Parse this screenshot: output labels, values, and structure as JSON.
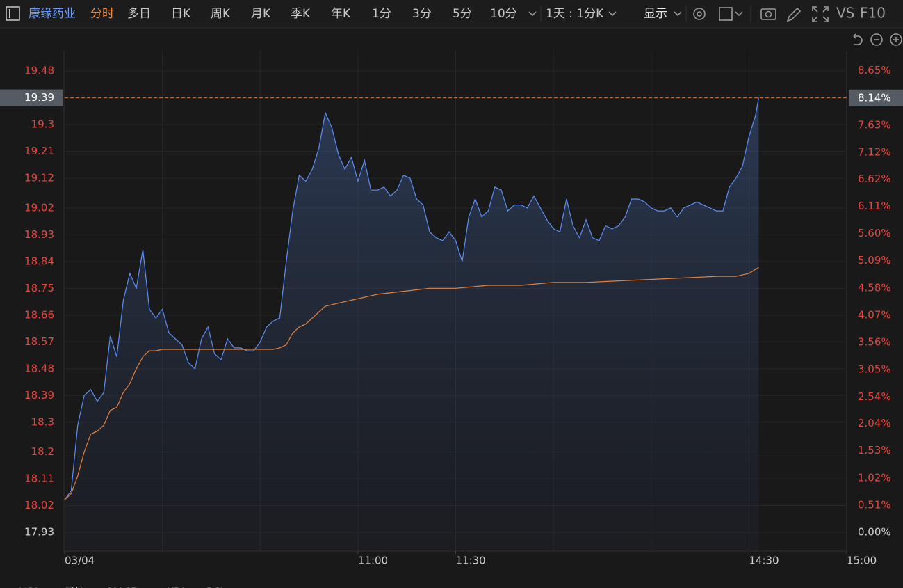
{
  "toolbar": {
    "stock_name": "康缘药业",
    "tabs": [
      "分时",
      "多日",
      "日K",
      "周K",
      "月K",
      "季K",
      "年K",
      "1分",
      "3分",
      "5分",
      "10分"
    ],
    "period": "1天 : 1分K",
    "display": "显示",
    "vs": "VS",
    "f10": "F10"
  },
  "chart_data": {
    "type": "line",
    "xlim": [
      0,
      240
    ],
    "xticks": [
      {
        "value": 0,
        "label": "03/04"
      },
      {
        "value": 90,
        "label": "11:00"
      },
      {
        "value": 120,
        "label": "11:30"
      },
      {
        "value": 210,
        "label": "14:30"
      },
      {
        "value": 240,
        "label": "15:00"
      }
    ],
    "xgrid": [
      30,
      60,
      90,
      120,
      150,
      180,
      210
    ],
    "ylim": [
      17.867,
      19.548
    ],
    "yticks": [
      19.48,
      19.39,
      19.3,
      19.21,
      19.12,
      19.02,
      18.93,
      18.84,
      18.75,
      18.66,
      18.57,
      18.48,
      18.39,
      18.3,
      18.2,
      18.11,
      18.02,
      17.93
    ],
    "y2lim": [
      -0.351,
      9.024
    ],
    "y2ticks": [
      {
        "value": 8.65,
        "label": "8.65%"
      },
      {
        "value": 8.14,
        "label": "8.14%"
      },
      {
        "value": 7.63,
        "label": "7.63%"
      },
      {
        "value": 7.12,
        "label": "7.12%"
      },
      {
        "value": 6.62,
        "label": "6.62%"
      },
      {
        "value": 6.11,
        "label": "6.11%"
      },
      {
        "value": 5.6,
        "label": "5.60%"
      },
      {
        "value": 5.09,
        "label": "5.09%"
      },
      {
        "value": 4.58,
        "label": "4.58%"
      },
      {
        "value": 4.07,
        "label": "4.07%"
      },
      {
        "value": 3.56,
        "label": "3.56%"
      },
      {
        "value": 3.05,
        "label": "3.05%"
      },
      {
        "value": 2.54,
        "label": "2.54%"
      },
      {
        "value": 2.04,
        "label": "2.04%"
      },
      {
        "value": 1.53,
        "label": "1.53%"
      },
      {
        "value": 1.02,
        "label": "1.02%"
      },
      {
        "value": 0.51,
        "label": "0.51%"
      },
      {
        "value": 0,
        "label": "0.00%"
      }
    ],
    "grid": true,
    "last_price": 19.39,
    "series": [
      {
        "color": "#5b8ff9",
        "area": true,
        "x": [
          0,
          2,
          4,
          6,
          8,
          10,
          12,
          14,
          16,
          18,
          20,
          22,
          24,
          26,
          28,
          30,
          32,
          34,
          36,
          38,
          40,
          42,
          44,
          46,
          48,
          50,
          52,
          54,
          56,
          58,
          60,
          62,
          64,
          66,
          68,
          70,
          72,
          74,
          76,
          78,
          80,
          82,
          84,
          86,
          88,
          90,
          92,
          94,
          96,
          98,
          100,
          102,
          104,
          106,
          108,
          110,
          112,
          114,
          116,
          118,
          120,
          122,
          124,
          126,
          128,
          130,
          132,
          134,
          136,
          138,
          140,
          142,
          144,
          146,
          148,
          150,
          152,
          154,
          156,
          158,
          160,
          162,
          164,
          166,
          168,
          170,
          172,
          174,
          176,
          178,
          180,
          182,
          184,
          186,
          188,
          190,
          192,
          194,
          196,
          198,
          200,
          202,
          204,
          206,
          208,
          210,
          212,
          213
        ],
        "values": [
          18.04,
          18.07,
          18.29,
          18.39,
          18.41,
          18.37,
          18.4,
          18.59,
          18.52,
          18.71,
          18.8,
          18.75,
          18.88,
          18.68,
          18.65,
          18.68,
          18.6,
          18.58,
          18.56,
          18.5,
          18.48,
          18.58,
          18.62,
          18.53,
          18.51,
          18.58,
          18.55,
          18.55,
          18.54,
          18.54,
          18.57,
          18.62,
          18.64,
          18.65,
          18.84,
          19.01,
          19.13,
          19.11,
          19.15,
          19.22,
          19.34,
          19.29,
          19.2,
          19.15,
          19.19,
          19.11,
          19.18,
          19.08,
          19.08,
          19.09,
          19.06,
          19.08,
          19.13,
          19.12,
          19.05,
          19.03,
          18.94,
          18.92,
          18.91,
          18.94,
          18.91,
          18.84,
          18.99,
          19.05,
          18.99,
          19.01,
          19.09,
          19.08,
          19.01,
          19.03,
          19.03,
          19.02,
          19.06,
          19.02,
          18.98,
          18.95,
          18.94,
          19.05,
          18.96,
          18.92,
          18.98,
          18.92,
          18.91,
          18.96,
          18.95,
          18.96,
          18.99,
          19.05,
          19.05,
          19.04,
          19.02,
          19.01,
          19.01,
          19.02,
          18.99,
          19.02,
          19.03,
          19.04,
          19.03,
          19.02,
          19.01,
          19.01,
          19.09,
          19.12,
          19.16,
          19.26,
          19.33,
          19.39
        ]
      },
      {
        "color": "#e8823a",
        "area": false,
        "x": [
          0,
          2,
          4,
          6,
          8,
          10,
          12,
          14,
          16,
          18,
          20,
          22,
          24,
          26,
          28,
          30,
          34,
          40,
          50,
          60,
          64,
          66,
          68,
          70,
          72,
          74,
          76,
          78,
          80,
          84,
          88,
          92,
          96,
          104,
          112,
          120,
          130,
          140,
          150,
          160,
          170,
          180,
          190,
          200,
          206,
          210,
          213
        ],
        "values": [
          18.04,
          18.06,
          18.12,
          18.2,
          18.26,
          18.27,
          18.29,
          18.34,
          18.35,
          18.4,
          18.43,
          18.48,
          18.52,
          18.54,
          18.54,
          18.545,
          18.545,
          18.545,
          18.545,
          18.545,
          18.545,
          18.55,
          18.56,
          18.6,
          18.62,
          18.63,
          18.65,
          18.67,
          18.69,
          18.7,
          18.71,
          18.72,
          18.73,
          18.74,
          18.75,
          18.75,
          18.76,
          18.76,
          18.77,
          18.77,
          18.775,
          18.78,
          18.785,
          18.79,
          18.79,
          18.8,
          18.82
        ]
      }
    ]
  },
  "indicator_tabs": [
    "VOL",
    "量比",
    "MACD",
    "KDJ",
    "RSI"
  ]
}
